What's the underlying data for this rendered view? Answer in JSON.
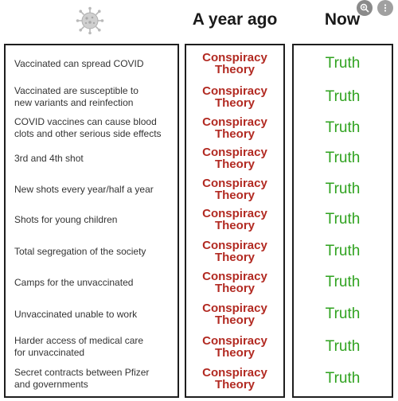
{
  "header": {
    "col_ago": "A year ago",
    "col_now": "Now"
  },
  "icons": {
    "virus": "virus-icon",
    "zoom": "zoom-icon"
  },
  "colors": {
    "conspiracy": "#b22a22",
    "truth": "#2fa21f",
    "border": "#1e1e1e"
  },
  "rows": [
    {
      "line1": "Vaccinated can spread COVID",
      "line2": "",
      "ago1": "Conspiracy",
      "ago2": "Theory",
      "now": "Truth"
    },
    {
      "line1": "Vaccinated are susceptible to",
      "line2": "new variants and reinfection",
      "ago1": "Conspiracy",
      "ago2": "Theory",
      "now": "Truth"
    },
    {
      "line1": "COVID vaccines can cause blood",
      "line2": "clots and other serious side effects",
      "ago1": "Conspiracy",
      "ago2": "Theory",
      "now": "Truth"
    },
    {
      "line1": "3rd and 4th shot",
      "line2": "",
      "ago1": "Conspiracy",
      "ago2": "Theory",
      "now": "Truth"
    },
    {
      "line1": "New shots every year/half a year",
      "line2": "",
      "ago1": "Conspiracy",
      "ago2": "Theory",
      "now": "Truth"
    },
    {
      "line1": "Shots for young children",
      "line2": "",
      "ago1": "Conspiracy",
      "ago2": "Theory",
      "now": "Truth"
    },
    {
      "line1": "Total segregation of the society",
      "line2": "",
      "ago1": "Conspiracy",
      "ago2": "Theory",
      "now": "Truth"
    },
    {
      "line1": "Camps for the unvaccinated",
      "line2": "",
      "ago1": "Conspiracy",
      "ago2": "Theory",
      "now": "Truth"
    },
    {
      "line1": "Unvaccinated unable to work",
      "line2": "",
      "ago1": "Conspiracy",
      "ago2": "Theory",
      "now": "Truth"
    },
    {
      "line1": "Harder access of medical care",
      "line2": "for unvaccinated",
      "ago1": "Conspiracy",
      "ago2": "Theory",
      "now": "Truth"
    },
    {
      "line1": "Secret contracts between Pfizer",
      "line2": "and governments",
      "ago1": "Conspiracy",
      "ago2": "Theory",
      "now": "Truth"
    }
  ]
}
